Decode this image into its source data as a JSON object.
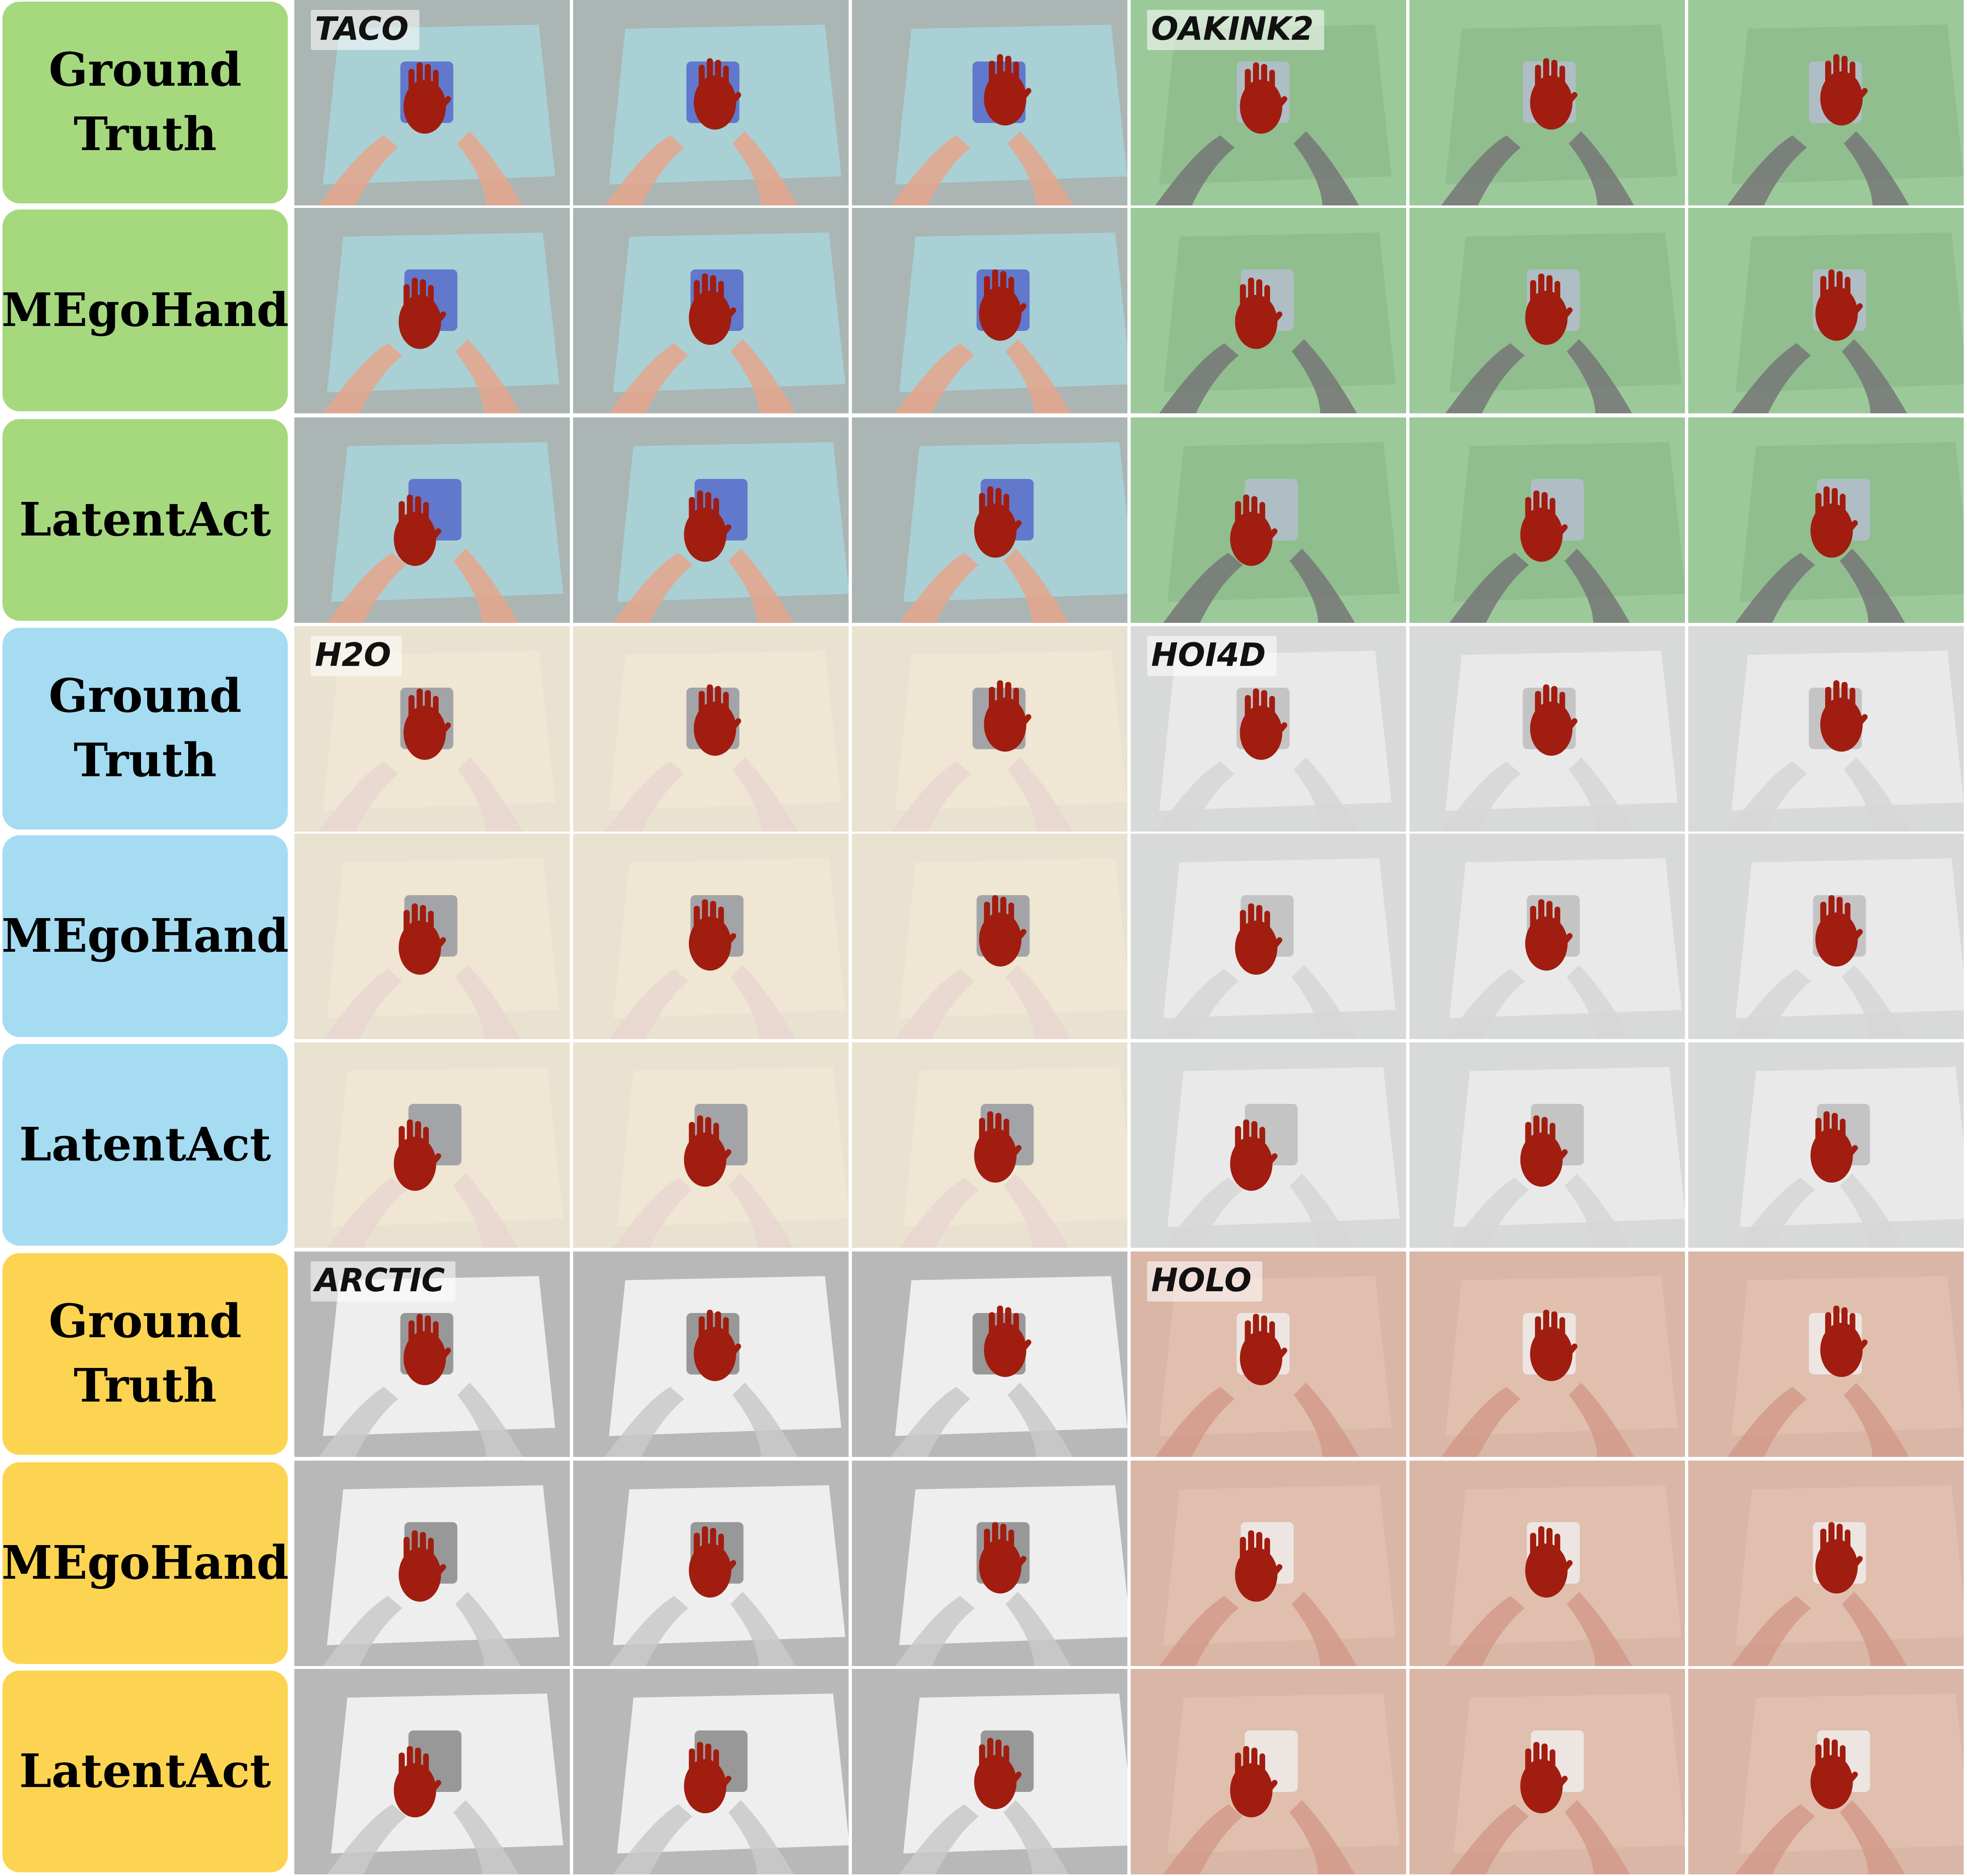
{
  "rows": [
    {
      "label": "Ground\nTruth",
      "group": "green"
    },
    {
      "label": "MEgoHand",
      "group": "green"
    },
    {
      "label": "LatentAct",
      "group": "green"
    },
    {
      "label": "Ground\nTruth",
      "group": "blue"
    },
    {
      "label": "MEgoHand",
      "group": "blue"
    },
    {
      "label": "LatentAct",
      "group": "blue"
    },
    {
      "label": "Ground\nTruth",
      "group": "yellow"
    },
    {
      "label": "MEgoHand",
      "group": "yellow"
    },
    {
      "label": "LatentAct",
      "group": "yellow"
    }
  ],
  "datasets": [
    {
      "name": "TACO",
      "block": 0,
      "side": "left",
      "scene": "taco"
    },
    {
      "name": "OAKINK2",
      "block": 0,
      "side": "right",
      "scene": "oakink"
    },
    {
      "name": "H2O",
      "block": 1,
      "side": "left",
      "scene": "h2o"
    },
    {
      "name": "HOI4D",
      "block": 1,
      "side": "right",
      "scene": "hoi4d"
    },
    {
      "name": "ARCTIC",
      "block": 2,
      "side": "left",
      "scene": "arctic"
    },
    {
      "name": "HOLO",
      "block": 2,
      "side": "right",
      "scene": "holo"
    }
  ],
  "colors": {
    "group_green": "#a6d97e",
    "group_blue": "#a5dcf2",
    "group_yellow": "#fdd451",
    "hand_overlay": "#a11d10"
  }
}
